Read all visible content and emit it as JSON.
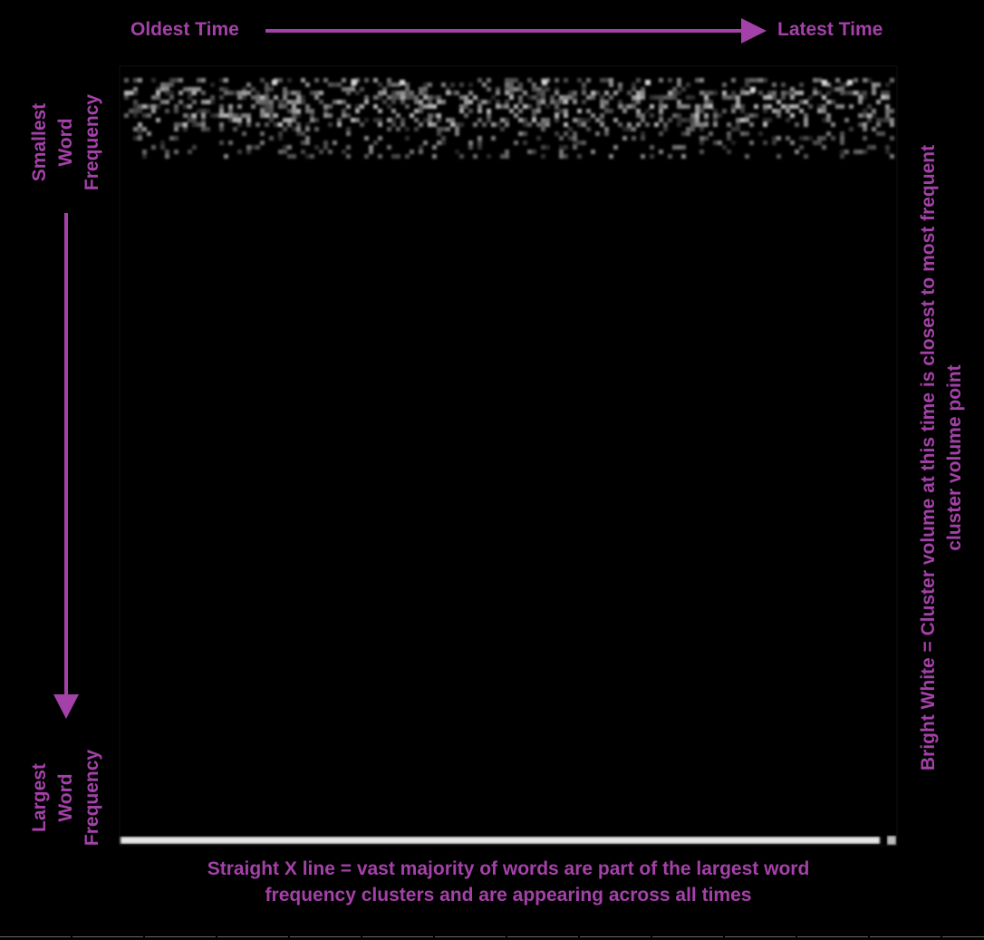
{
  "annotations": {
    "x_start": "Oldest Time",
    "x_end": "Latest Time",
    "y_top": [
      "Smallest",
      "Word",
      "Frequency"
    ],
    "y_bottom": [
      "Largest",
      "Word",
      "Frequency"
    ],
    "right_note": [
      "Bright White = Cluster volume at this time is closest to most frequent",
      "cluster volume point"
    ],
    "bottom_note": [
      "Straight X line = vast majority of words are part of the largest word",
      "frequency clusters and are appearing across all times"
    ]
  },
  "colors": {
    "annotation": "#a441a8",
    "background": "#000000",
    "bright": "#ffffff"
  },
  "chart_data": {
    "type": "heatmap",
    "x_direction": "oldest to latest time",
    "y_direction": "smallest to largest word frequency",
    "scale": "black (low) to bright white (closest to most frequent cluster volume)",
    "rows": [
      {
        "band": "smallest-frequency-row-1",
        "pattern": "scattered dim grey speckles across all times, a few bright points"
      },
      {
        "band": "smallest-frequency-row-2",
        "pattern": "scattered dim grey speckles across all times"
      },
      {
        "band": "mid-frequency-rows",
        "pattern": "black"
      },
      {
        "band": "largest-frequency-row",
        "pattern": "continuous bright white line across all times"
      }
    ]
  }
}
